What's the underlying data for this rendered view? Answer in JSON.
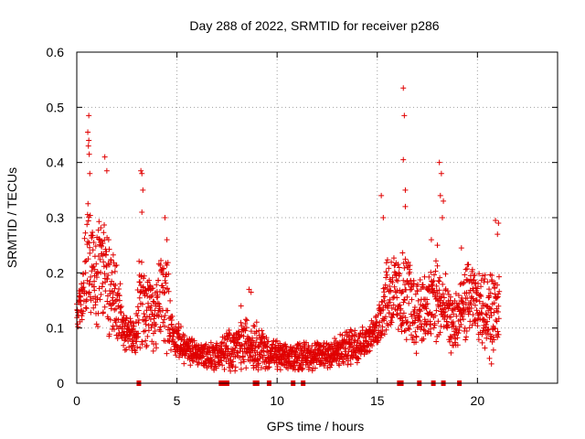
{
  "chart_data": {
    "type": "scatter",
    "title": "Day 288 of 2022, SRMTID for receiver p286",
    "xlabel": "GPS time / hours",
    "ylabel": "SRMTID / TECUs",
    "xlim": [
      0,
      24
    ],
    "ylim": [
      0,
      0.6
    ],
    "xticks": [
      "0",
      "5",
      "10",
      "15",
      "20"
    ],
    "xtick_values": [
      0,
      5,
      10,
      15,
      20
    ],
    "yticks": [
      "0",
      "0.1",
      "0.2",
      "0.3",
      "0.4",
      "0.5",
      "0.6"
    ],
    "ytick_values": [
      0,
      0.1,
      0.2,
      0.3,
      0.4,
      0.5,
      0.6
    ],
    "grid": true,
    "marker": "+",
    "color": "#e00000",
    "series": [
      {
        "name": "SRMTID",
        "envelope_x": [
          0.0,
          0.3,
          0.5,
          0.7,
          0.9,
          1.1,
          1.3,
          1.5,
          1.7,
          1.9,
          2.1,
          2.3,
          2.6,
          2.9,
          3.1,
          3.3,
          3.6,
          3.9,
          4.2,
          4.5,
          4.8,
          5.1,
          5.5,
          6.0,
          6.5,
          7.0,
          7.5,
          8.0,
          8.5,
          9.0,
          9.5,
          10.0,
          10.5,
          11.0,
          11.5,
          12.0,
          12.5,
          13.0,
          13.5,
          14.0,
          14.4,
          14.8,
          15.1,
          15.4,
          15.7,
          16.0,
          16.3,
          16.6,
          16.9,
          17.2,
          17.5,
          17.8,
          18.1,
          18.4,
          18.7,
          19.0,
          19.3,
          19.6,
          19.9,
          20.2,
          20.5,
          20.8,
          21.1
        ],
        "envelope_low": [
          0.1,
          0.1,
          0.09,
          0.09,
          0.08,
          0.08,
          0.1,
          0.08,
          0.08,
          0.08,
          0.06,
          0.05,
          0.05,
          0.05,
          0.04,
          0.05,
          0.06,
          0.05,
          0.06,
          0.05,
          0.05,
          0.04,
          0.03,
          0.03,
          0.02,
          0.02,
          0.02,
          0.02,
          0.02,
          0.02,
          0.02,
          0.02,
          0.02,
          0.02,
          0.02,
          0.02,
          0.02,
          0.02,
          0.03,
          0.03,
          0.05,
          0.06,
          0.06,
          0.08,
          0.07,
          0.06,
          0.06,
          0.06,
          0.05,
          0.06,
          0.05,
          0.05,
          0.06,
          0.06,
          0.05,
          0.05,
          0.07,
          0.07,
          0.08,
          0.06,
          0.06,
          0.06,
          0.06
        ],
        "envelope_high": [
          0.15,
          0.22,
          0.35,
          0.33,
          0.28,
          0.33,
          0.3,
          0.28,
          0.26,
          0.24,
          0.21,
          0.14,
          0.13,
          0.11,
          0.23,
          0.23,
          0.2,
          0.18,
          0.26,
          0.25,
          0.12,
          0.11,
          0.09,
          0.08,
          0.08,
          0.08,
          0.1,
          0.11,
          0.13,
          0.12,
          0.09,
          0.08,
          0.07,
          0.08,
          0.08,
          0.08,
          0.09,
          0.09,
          0.1,
          0.12,
          0.1,
          0.12,
          0.16,
          0.24,
          0.26,
          0.24,
          0.25,
          0.24,
          0.2,
          0.22,
          0.2,
          0.25,
          0.23,
          0.2,
          0.16,
          0.18,
          0.21,
          0.24,
          0.2,
          0.21,
          0.21,
          0.2,
          0.27
        ],
        "outliers": [
          [
            0.6,
            0.485
          ],
          [
            0.6,
            0.44
          ],
          [
            0.58,
            0.43
          ],
          [
            0.55,
            0.455
          ],
          [
            0.62,
            0.415
          ],
          [
            0.65,
            0.38
          ],
          [
            1.4,
            0.41
          ],
          [
            1.5,
            0.385
          ],
          [
            3.2,
            0.385
          ],
          [
            3.25,
            0.38
          ],
          [
            3.3,
            0.35
          ],
          [
            3.25,
            0.31
          ],
          [
            4.4,
            0.3
          ],
          [
            4.5,
            0.26
          ],
          [
            8.6,
            0.17
          ],
          [
            8.7,
            0.165
          ],
          [
            8.2,
            0.14
          ],
          [
            15.2,
            0.34
          ],
          [
            15.3,
            0.3
          ],
          [
            16.3,
            0.535
          ],
          [
            16.35,
            0.485
          ],
          [
            16.3,
            0.405
          ],
          [
            16.4,
            0.35
          ],
          [
            16.4,
            0.32
          ],
          [
            18.1,
            0.4
          ],
          [
            18.2,
            0.38
          ],
          [
            18.15,
            0.34
          ],
          [
            18.3,
            0.33
          ],
          [
            18.25,
            0.3
          ],
          [
            17.7,
            0.26
          ],
          [
            18.0,
            0.25
          ],
          [
            19.2,
            0.245
          ],
          [
            20.9,
            0.295
          ],
          [
            21.05,
            0.29
          ],
          [
            21.0,
            0.27
          ],
          [
            20.8,
            0.06
          ],
          [
            20.6,
            0.045
          ],
          [
            20.7,
            0.035
          ]
        ],
        "zero_markers": [
          3.1,
          7.2,
          7.3,
          7.4,
          7.5,
          8.9,
          9.0,
          9.6,
          10.8,
          11.3,
          16.1,
          16.2,
          17.1,
          17.8,
          18.3,
          19.1
        ]
      }
    ]
  }
}
